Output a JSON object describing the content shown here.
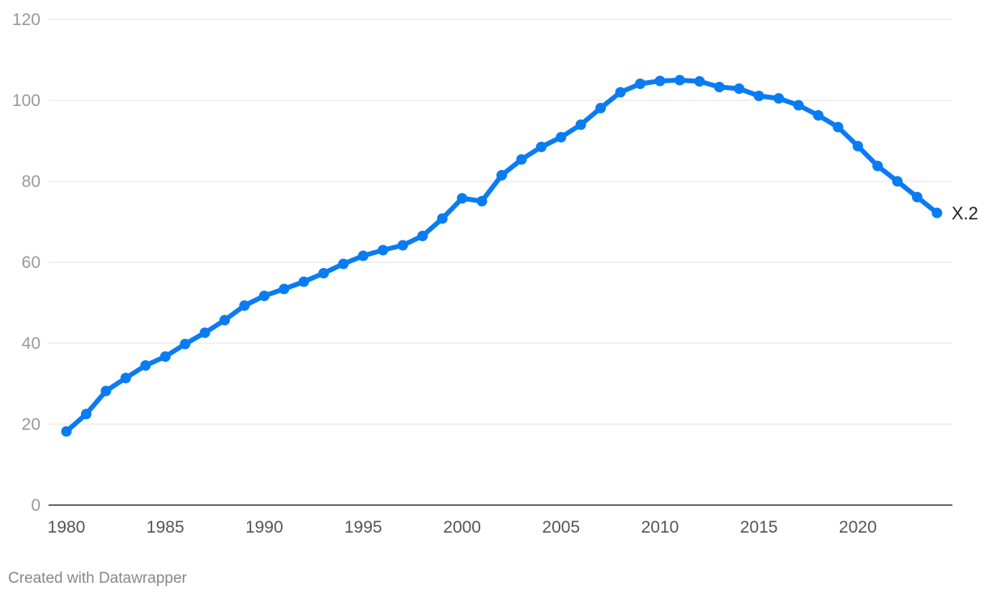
{
  "chart_data": {
    "type": "line",
    "title": "",
    "xlabel": "",
    "ylabel": "",
    "xlim": [
      1980,
      2024
    ],
    "ylim": [
      0,
      120
    ],
    "y_ticks": [
      "0",
      "20",
      "40",
      "60",
      "80",
      "100",
      "120"
    ],
    "x_ticks": [
      "1980",
      "1985",
      "1990",
      "1995",
      "2000",
      "2005",
      "2010",
      "2015",
      "2020"
    ],
    "grid": true,
    "legend": "none",
    "series": [
      {
        "end_label": "X.2",
        "color": "#0a7cf2",
        "x": [
          1980,
          1981,
          1982,
          1983,
          1984,
          1985,
          1986,
          1987,
          1988,
          1989,
          1990,
          1991,
          1992,
          1993,
          1994,
          1995,
          1996,
          1997,
          1998,
          1999,
          2000,
          2001,
          2002,
          2003,
          2004,
          2005,
          2006,
          2007,
          2008,
          2009,
          2010,
          2011,
          2012,
          2013,
          2014,
          2015,
          2016,
          2017,
          2018,
          2019,
          2020,
          2021,
          2022,
          2023,
          2024
        ],
        "y": [
          18.2,
          22.5,
          28.2,
          31.4,
          34.5,
          36.7,
          39.8,
          42.6,
          45.7,
          49.3,
          51.7,
          53.4,
          55.2,
          57.3,
          59.6,
          61.6,
          63.0,
          64.2,
          66.5,
          70.8,
          75.8,
          75.1,
          81.5,
          85.4,
          88.5,
          90.9,
          94.0,
          98.1,
          102.0,
          104.1,
          104.8,
          105.0,
          104.7,
          103.3,
          102.9,
          101.1,
          100.5,
          98.8,
          96.3,
          93.4,
          88.7,
          83.8,
          80.0,
          76.1,
          72.2
        ]
      }
    ]
  },
  "footer": {
    "credit": "Created with Datawrapper"
  }
}
